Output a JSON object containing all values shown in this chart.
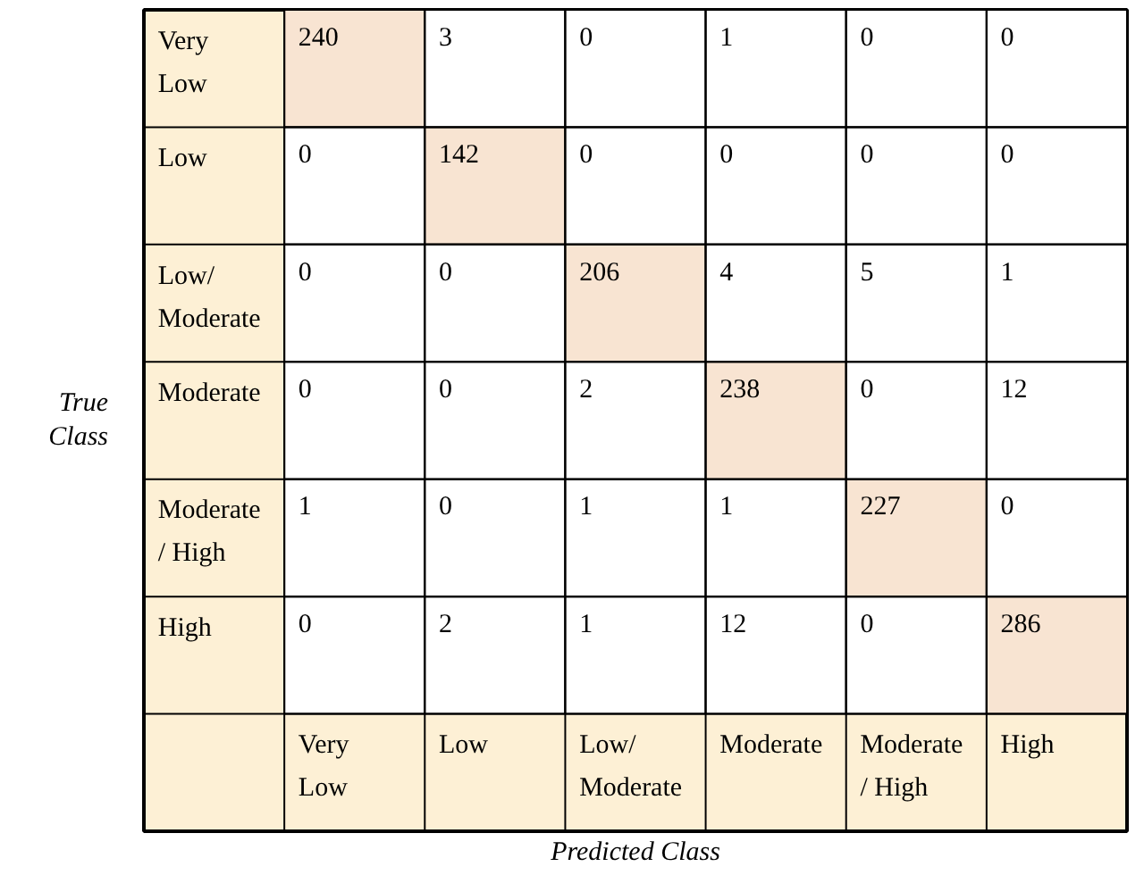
{
  "chart_data": {
    "type": "heatmap",
    "data_labels": true,
    "xlabel": "Predicted Class",
    "ylabel": "True Class",
    "categories": [
      "Very Low",
      "Low",
      "Low/ Moderate",
      "Moderate",
      "Moderate / High",
      "High"
    ],
    "y_categories": [
      "Very Low",
      "Low",
      "Low/ Moderate",
      "Moderate",
      "Moderate / High",
      "High"
    ],
    "cells": [
      [
        240,
        3,
        0,
        1,
        0,
        0
      ],
      [
        0,
        142,
        0,
        0,
        0,
        0
      ],
      [
        0,
        0,
        206,
        4,
        5,
        1
      ],
      [
        0,
        0,
        2,
        238,
        0,
        12
      ],
      [
        1,
        0,
        1,
        1,
        227,
        0
      ],
      [
        0,
        2,
        1,
        12,
        0,
        286
      ]
    ],
    "colors": [
      [
        "#f8e4d2",
        "#ffffff",
        "#ffffff",
        "#ffffff",
        "#ffffff",
        "#ffffff"
      ],
      [
        "#ffffff",
        "#f8e4d2",
        "#ffffff",
        "#ffffff",
        "#ffffff",
        "#ffffff"
      ],
      [
        "#ffffff",
        "#ffffff",
        "#f8e4d2",
        "#ffffff",
        "#ffffff",
        "#ffffff"
      ],
      [
        "#ffffff",
        "#ffffff",
        "#ffffff",
        "#f8e4d2",
        "#ffffff",
        "#ffffff"
      ],
      [
        "#ffffff",
        "#ffffff",
        "#ffffff",
        "#ffffff",
        "#f8e4d2",
        "#ffffff"
      ],
      [
        "#ffffff",
        "#ffffff",
        "#ffffff",
        "#ffffff",
        "#ffffff",
        "#f8e4d2"
      ]
    ]
  }
}
